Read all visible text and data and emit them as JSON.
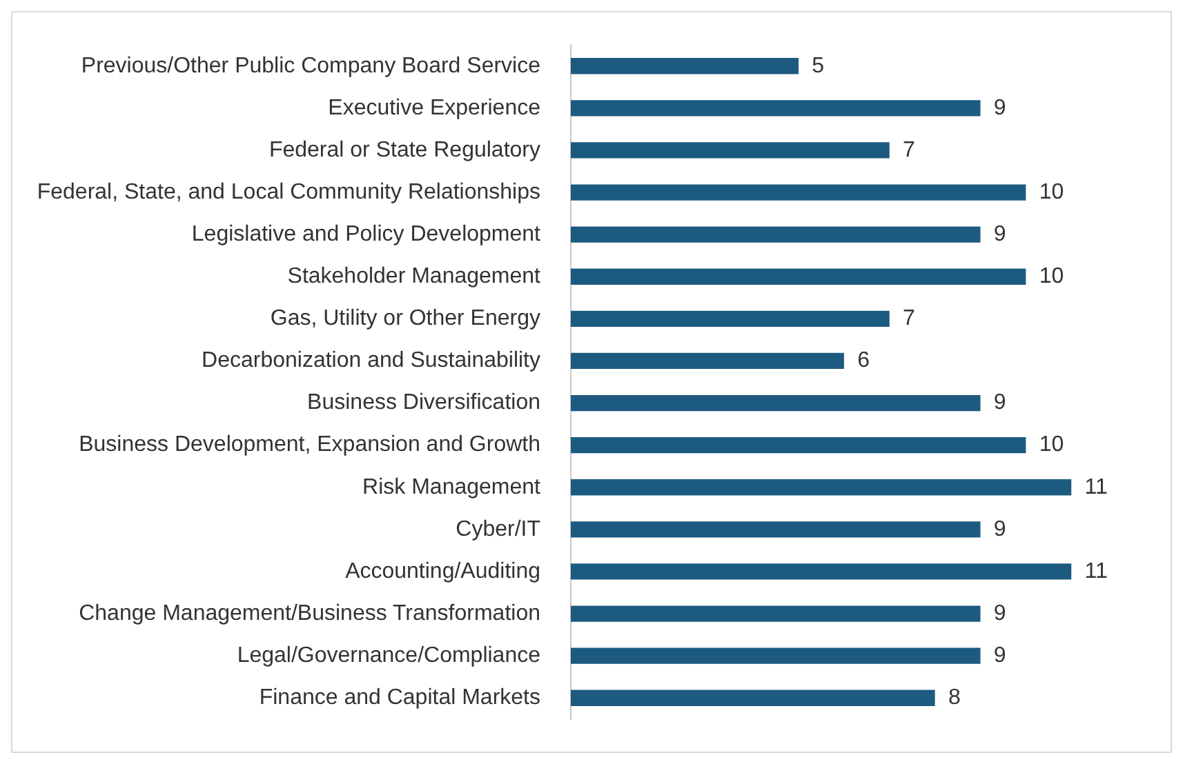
{
  "chart_data": {
    "type": "bar",
    "orientation": "horizontal",
    "categories": [
      "Previous/Other Public Company Board Service",
      "Executive Experience",
      "Federal or State Regulatory",
      "Federal, State, and Local Community Relationships",
      "Legislative and Policy Development",
      "Stakeholder Management",
      "Gas, Utility or Other Energy",
      "Decarbonization and Sustainability",
      "Business Diversification",
      "Business Development, Expansion and Growth",
      "Risk Management",
      "Cyber/IT",
      "Accounting/Auditing",
      "Change Management/Business Transformation",
      "Legal/Governance/Compliance",
      "Finance and Capital Markets"
    ],
    "values": [
      5,
      9,
      7,
      10,
      9,
      10,
      7,
      6,
      9,
      10,
      11,
      9,
      11,
      9,
      9,
      8
    ],
    "color": "#1d5a80",
    "data_labels": true,
    "legend": false
  }
}
